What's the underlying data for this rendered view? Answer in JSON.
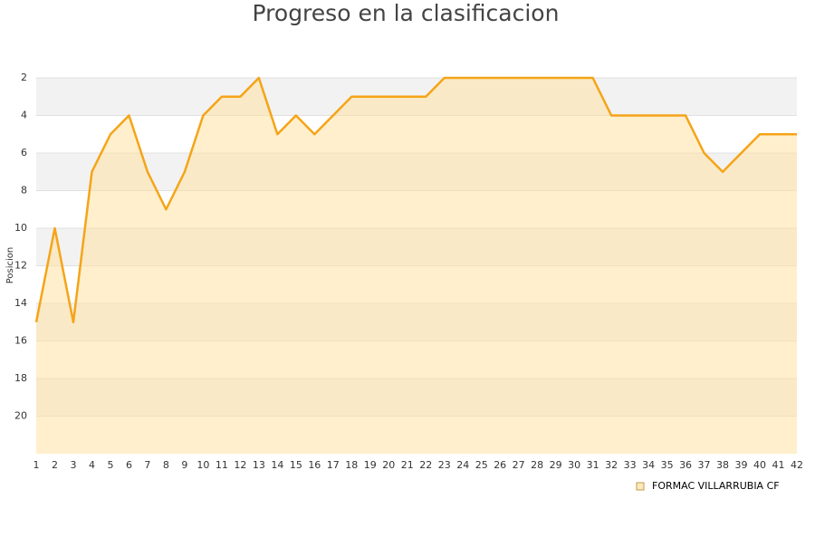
{
  "chart_data": {
    "type": "line",
    "title": "Progreso en la clasificacion",
    "ylabel": "Posicion",
    "x": [
      1,
      2,
      3,
      4,
      5,
      6,
      7,
      8,
      9,
      10,
      11,
      12,
      13,
      14,
      15,
      16,
      17,
      18,
      19,
      20,
      21,
      22,
      23,
      24,
      25,
      26,
      27,
      28,
      29,
      30,
      31,
      32,
      33,
      34,
      35,
      36,
      37,
      38,
      39,
      40,
      41,
      42
    ],
    "xlim": [
      1,
      42
    ],
    "series": [
      {
        "name": "FORMAC VILLARRUBIA CF",
        "color": "#f5a418",
        "values": [
          15,
          10,
          15,
          7,
          5,
          4,
          7,
          9,
          7,
          4,
          3,
          3,
          2,
          5,
          4,
          5,
          4,
          3,
          3,
          3,
          3,
          3,
          2,
          2,
          2,
          2,
          2,
          2,
          2,
          2,
          2,
          4,
          4,
          4,
          4,
          4,
          6,
          7,
          6,
          5,
          5,
          5
        ]
      }
    ],
    "ylim": [
      22,
      2
    ],
    "yticks": [
      2,
      4,
      6,
      8,
      10,
      12,
      14,
      16,
      18,
      20
    ],
    "grid": true,
    "legend": "bottom-right"
  }
}
